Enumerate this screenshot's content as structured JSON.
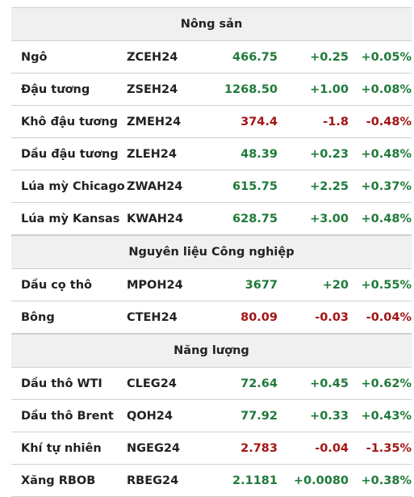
{
  "sections": [
    {
      "title": "Nông sản",
      "rows": [
        {
          "name": "Ngô",
          "code": "ZCEH24",
          "price": "466.75",
          "change": "+0.25",
          "pct": "+0.05%",
          "dir": "up"
        },
        {
          "name": "Đậu tương",
          "code": "ZSEH24",
          "price": "1268.50",
          "change": "+1.00",
          "pct": "+0.08%",
          "dir": "up"
        },
        {
          "name": "Khô đậu tương",
          "code": "ZMEH24",
          "price": "374.4",
          "change": "-1.8",
          "pct": "-0.48%",
          "dir": "down"
        },
        {
          "name": "Dầu đậu tương",
          "code": "ZLEH24",
          "price": "48.39",
          "change": "+0.23",
          "pct": "+0.48%",
          "dir": "up"
        },
        {
          "name": "Lúa mỳ Chicago",
          "code": "ZWAH24",
          "price": "615.75",
          "change": "+2.25",
          "pct": "+0.37%",
          "dir": "up"
        },
        {
          "name": "Lúa mỳ Kansas",
          "code": "KWAH24",
          "price": "628.75",
          "change": "+3.00",
          "pct": "+0.48%",
          "dir": "up"
        }
      ]
    },
    {
      "title": "Nguyên liệu Công nghiệp",
      "rows": [
        {
          "name": "Dầu cọ thô",
          "code": "MPOH24",
          "price": "3677",
          "change": "+20",
          "pct": "+0.55%",
          "dir": "up"
        },
        {
          "name": "Bông",
          "code": "CTEH24",
          "price": "80.09",
          "change": "-0.03",
          "pct": "-0.04%",
          "dir": "down"
        }
      ]
    },
    {
      "title": "Năng lượng",
      "rows": [
        {
          "name": "Dầu thô WTI",
          "code": "CLEG24",
          "price": "72.64",
          "change": "+0.45",
          "pct": "+0.62%",
          "dir": "up"
        },
        {
          "name": "Dầu thô Brent",
          "code": "QOH24",
          "price": "77.92",
          "change": "+0.33",
          "pct": "+0.43%",
          "dir": "up"
        },
        {
          "name": "Khí tự nhiên",
          "code": "NGEG24",
          "price": "2.783",
          "change": "-0.04",
          "pct": "-1.35%",
          "dir": "down"
        },
        {
          "name": "Xăng RBOB",
          "code": "RBEG24",
          "price": "2.1181",
          "change": "+0.0080",
          "pct": "+0.38%",
          "dir": "up"
        }
      ]
    }
  ],
  "colors": {
    "up": "#1f7a3a",
    "down": "#a31515",
    "header_bg": "#f0f0f0",
    "border": "#cfcfcf"
  }
}
